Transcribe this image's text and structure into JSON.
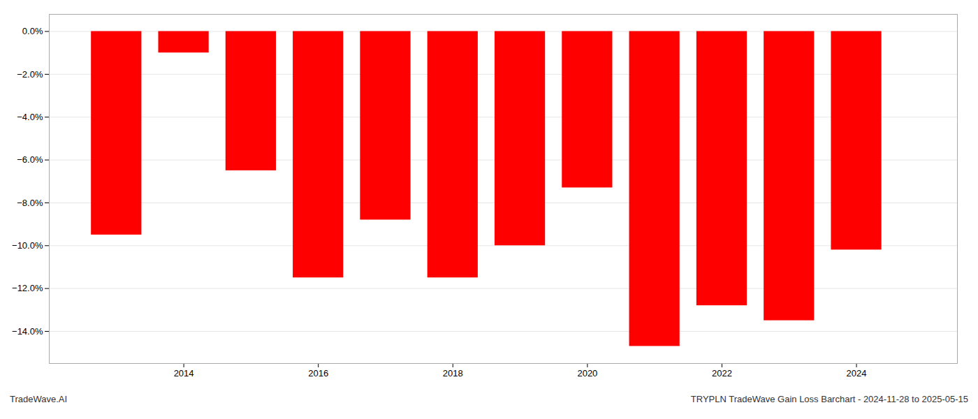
{
  "chart_data": {
    "type": "bar",
    "title": "TRYPLN TradeWave Gain Loss Barchart - 2024-11-28 to 2025-05-15",
    "annotations": [
      {
        "text": "TradeWave.AI"
      }
    ],
    "x": [
      2013,
      2014,
      2015,
      2016,
      2017,
      2018,
      2019,
      2020,
      2021,
      2022,
      2023,
      2024
    ],
    "values": [
      -9.5,
      -1.0,
      -6.5,
      -11.5,
      -8.8,
      -11.5,
      -10.0,
      -7.3,
      -14.7,
      -12.8,
      -13.5,
      -10.2
    ],
    "color": "#ff0000",
    "xlim": [
      2012.0,
      2025.5
    ],
    "xticks": [
      2014,
      2016,
      2018,
      2020,
      2022,
      2024
    ],
    "ylim": [
      -15.5,
      0.8
    ],
    "yticks": [
      {
        "value": 0.0,
        "label": "0.0%"
      },
      {
        "value": -2.0,
        "label": "−2.0%"
      },
      {
        "value": -4.0,
        "label": "−4.0%"
      },
      {
        "value": -6.0,
        "label": "−6.0%"
      },
      {
        "value": -8.0,
        "label": "−8.0%"
      },
      {
        "value": -10.0,
        "label": "−10.0%"
      },
      {
        "value": -12.0,
        "label": "−12.0%"
      },
      {
        "value": -14.0,
        "label": "−14.0%"
      }
    ],
    "grid": true
  }
}
